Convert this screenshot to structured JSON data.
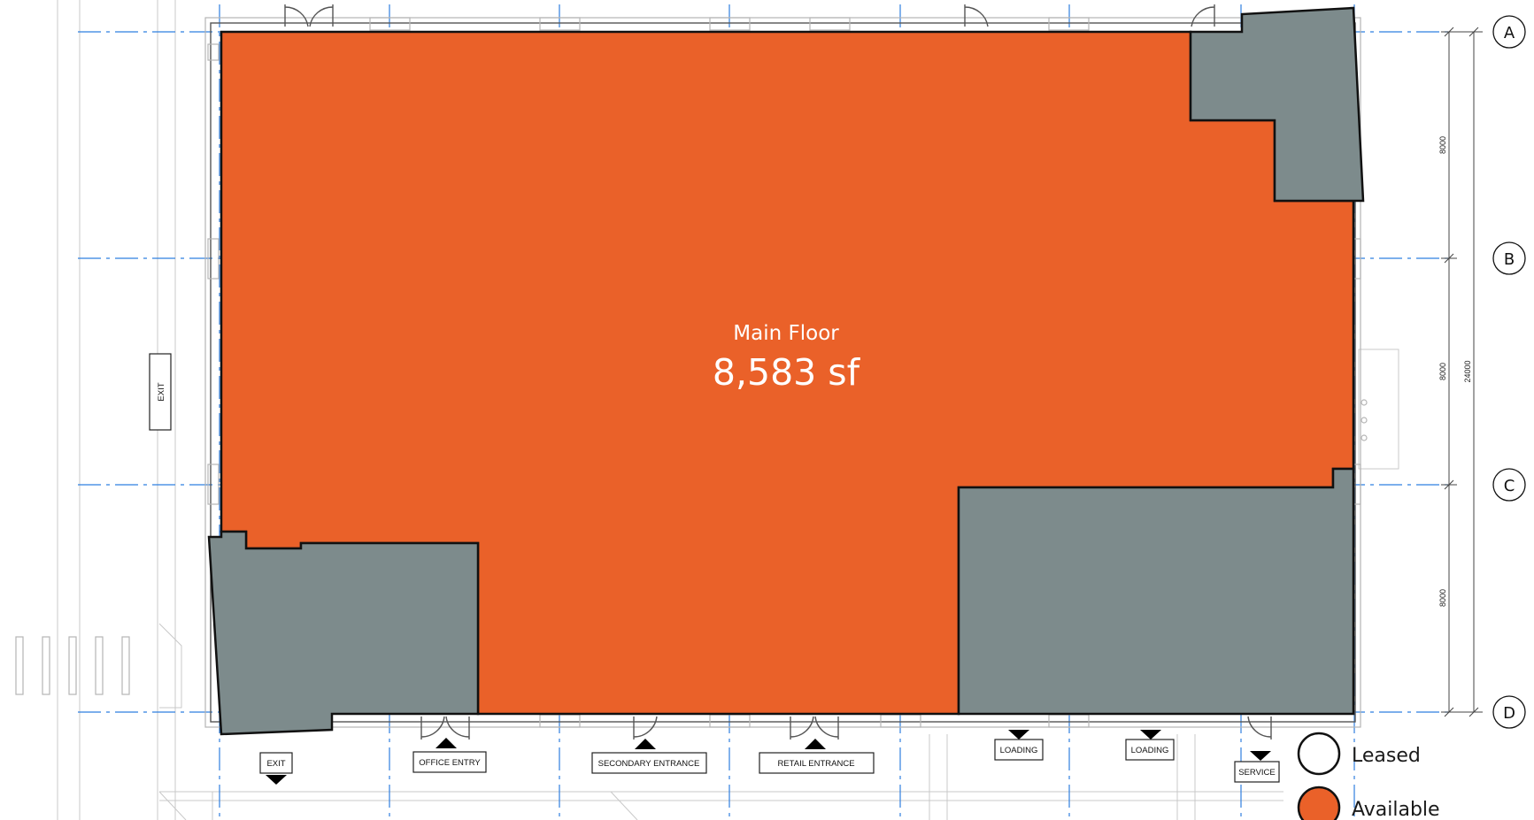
{
  "area": {
    "name": "Main Floor",
    "size": "8,583 sf"
  },
  "grid_labels": [
    "A",
    "B",
    "C",
    "D"
  ],
  "dimensions": {
    "bay_1": "8000",
    "bay_2": "8000",
    "bay_3": "8000",
    "overall": "24000"
  },
  "signs": {
    "exit_side": "EXIT",
    "exit_bottom": "EXIT",
    "office_entry": "OFFICE ENTRY",
    "secondary_entrance": "SECONDARY ENTRANCE",
    "retail_entrance": "RETAIL ENTRANCE",
    "loading_1": "LOADING",
    "loading_2": "LOADING",
    "service": "SERVICE"
  },
  "legend": {
    "leased_label": "Leased",
    "available_label": "Available",
    "leased_color": "#ffffff",
    "available_color": "#ea6129"
  },
  "colors": {
    "available": "#ea6129",
    "leased": "#7d8b8c",
    "grid": "#2f7fe0"
  }
}
